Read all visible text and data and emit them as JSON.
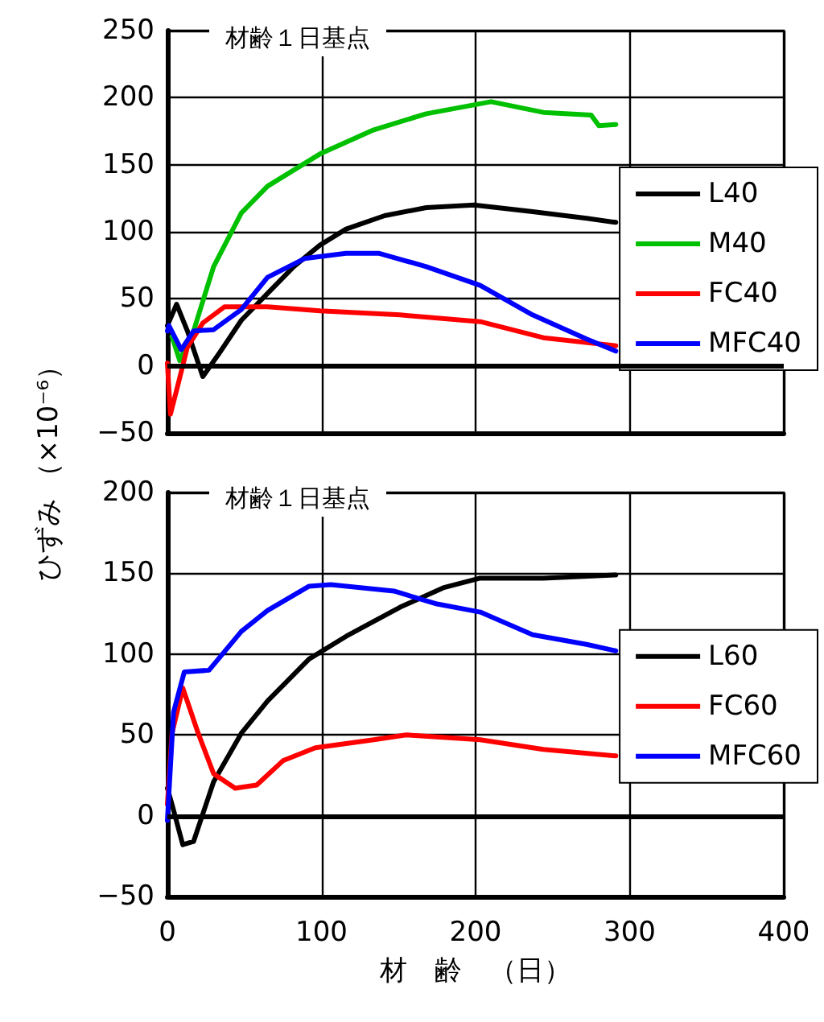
{
  "chart_data": [
    {
      "type": "line",
      "title": "材齢１日基点",
      "ylabel": "ひずみ （×10⁻⁶）",
      "xlim": [
        0,
        400
      ],
      "xticks": [
        0,
        100,
        200,
        300,
        400
      ],
      "ylim": [
        -50,
        250
      ],
      "yticks": [
        -50,
        0,
        50,
        100,
        150,
        200,
        250
      ],
      "tick_labels": "y",
      "grid": true,
      "legend": "right",
      "marker": "none",
      "ref_lines": [
        {
          "axis": "y",
          "value": 0,
          "color": "#000000"
        }
      ],
      "series": [
        {
          "name": "L40",
          "color": "#000000",
          "x": [
            0,
            6,
            13,
            23,
            34,
            48,
            65,
            82,
            99,
            116,
            141,
            168,
            199,
            237,
            272,
            291
          ],
          "values": [
            30,
            46,
            26,
            -8,
            10,
            34,
            54,
            74,
            90,
            102,
            112,
            118,
            120,
            115,
            110,
            107
          ]
        },
        {
          "name": "M40",
          "color": "#00c000",
          "x": [
            3,
            8,
            17,
            30,
            48,
            65,
            82,
            99,
            134,
            168,
            196,
            210,
            244,
            275,
            280,
            291
          ],
          "values": [
            22,
            4,
            26,
            74,
            114,
            134,
            146,
            158,
            176,
            188,
            194,
            197,
            189,
            187,
            179,
            180
          ]
        },
        {
          "name": "FC40",
          "color": "#ff0000",
          "x": [
            0,
            2,
            6,
            13,
            23,
            37,
            65,
            99,
            151,
            203,
            244,
            291
          ],
          "values": [
            2,
            -36,
            -18,
            14,
            32,
            44,
            44,
            41,
            38,
            33,
            21,
            15
          ]
        },
        {
          "name": "MFC40",
          "color": "#0000ff",
          "x": [
            0,
            1,
            9,
            17,
            30,
            48,
            65,
            89,
            116,
            137,
            168,
            203,
            237,
            272,
            291
          ],
          "values": [
            26,
            30,
            12,
            26,
            27,
            42,
            66,
            80,
            84,
            84,
            74,
            60,
            38,
            20,
            11
          ]
        }
      ]
    },
    {
      "type": "line",
      "title": "材齢１日基点",
      "xlabel": "材　齢　（日）",
      "xlim": [
        0,
        400
      ],
      "xticks": [
        0,
        100,
        200,
        300,
        400
      ],
      "ylim": [
        -50,
        200
      ],
      "yticks": [
        -50,
        0,
        50,
        100,
        150,
        200
      ],
      "grid": true,
      "legend": "right",
      "marker": "none",
      "ref_lines": [
        {
          "axis": "y",
          "value": 0,
          "color": "#000000"
        }
      ],
      "series": [
        {
          "name": "L60",
          "color": "#000000",
          "x": [
            0,
            3,
            10,
            17,
            30,
            48,
            65,
            92,
            116,
            151,
            179,
            203,
            244,
            291
          ],
          "values": [
            17,
            7,
            -18,
            -16,
            21,
            51,
            71,
            97,
            111,
            129,
            141,
            147,
            147,
            149
          ]
        },
        {
          "name": "FC60",
          "color": "#ff0000",
          "x": [
            0,
            3,
            10,
            20,
            30,
            44,
            58,
            75,
            96,
            134,
            155,
            203,
            244,
            291
          ],
          "values": [
            7,
            51,
            79,
            51,
            26,
            17,
            19,
            34,
            42,
            47,
            50,
            47,
            41,
            37
          ]
        },
        {
          "name": "MFC60",
          "color": "#0000ff",
          "x": [
            0,
            4,
            11,
            27,
            48,
            65,
            92,
            106,
            147,
            175,
            203,
            237,
            272,
            291
          ],
          "values": [
            -3,
            64,
            89,
            90,
            114,
            127,
            142,
            143,
            139,
            131,
            126,
            112,
            106,
            102
          ]
        }
      ]
    }
  ]
}
